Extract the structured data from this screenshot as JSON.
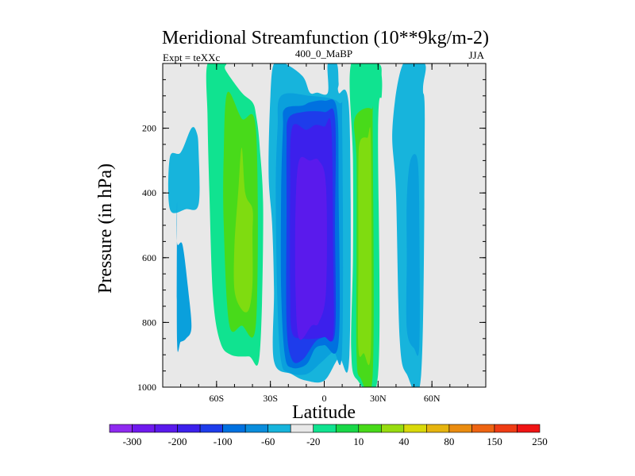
{
  "chart_data": {
    "type": "heatmap",
    "title": "Meridional Streamfunction (10**9kg/m-2)",
    "left_subtitle": "Expt = teXXc",
    "center_subtitle": "400_0_MaBP",
    "right_subtitle": "JJA",
    "xlabel": "Latitude",
    "ylabel": "Pressure (in hPa)",
    "xlim": [
      -90,
      90
    ],
    "ylim": [
      1000,
      0
    ],
    "x_ticks": [
      {
        "value": -60,
        "label": "60S"
      },
      {
        "value": -30,
        "label": "30S"
      },
      {
        "value": 0,
        "label": "0"
      },
      {
        "value": 30,
        "label": "30N"
      },
      {
        "value": 60,
        "label": "60N"
      }
    ],
    "y_ticks": [
      {
        "value": 200,
        "label": "200"
      },
      {
        "value": 400,
        "label": "400"
      },
      {
        "value": 600,
        "label": "600"
      },
      {
        "value": 800,
        "label": "800"
      },
      {
        "value": 1000,
        "label": "1000"
      }
    ],
    "background_color": "#e8e8e8",
    "contour_regions": [
      {
        "name": "sh-polar-cell",
        "level": -20,
        "color": "#17b4dc",
        "outline": [
          [
            -86,
            290
          ],
          [
            -80,
            275
          ],
          [
            -74,
            200
          ],
          [
            -71,
            215
          ],
          [
            -70,
            270
          ],
          [
            -70,
            435
          ],
          [
            -77,
            450
          ],
          [
            -86,
            450
          ]
        ]
      },
      {
        "name": "sh-polar-core",
        "level": -40,
        "color": "#0aa0dc",
        "outline": [
          [
            -82,
            440
          ],
          [
            -82,
            555
          ],
          [
            -79,
            560
          ],
          [
            -76,
            690
          ],
          [
            -74,
            815
          ],
          [
            -77,
            850
          ],
          [
            -80,
            860
          ],
          [
            -82,
            860
          ]
        ]
      },
      {
        "name": "sh-ferrel-cell",
        "level": 10,
        "color": "#10e390",
        "outline": [
          [
            -65,
            0
          ],
          [
            -55,
            0
          ],
          [
            -55,
            20
          ],
          [
            -46,
            90
          ],
          [
            -40,
            120
          ],
          [
            -38,
            160
          ],
          [
            -36,
            255
          ],
          [
            -34,
            470
          ],
          [
            -36,
            900
          ],
          [
            -42,
            905
          ],
          [
            -52,
            900
          ],
          [
            -58,
            860
          ],
          [
            -62,
            720
          ],
          [
            -64,
            400
          ],
          [
            -65,
            170
          ]
        ]
      },
      {
        "name": "sh-ferrel-inner",
        "level": 40,
        "color": "#48da1a",
        "outline": [
          [
            -54,
            90
          ],
          [
            -46,
            170
          ],
          [
            -38,
            210
          ],
          [
            -38,
            800
          ],
          [
            -46,
            810
          ],
          [
            -53,
            805
          ],
          [
            -56,
            500
          ],
          [
            -56,
            280
          ]
        ]
      },
      {
        "name": "sh-ferrel-core",
        "level": 60,
        "color": "#7fdc10",
        "outline": [
          [
            -46,
            260
          ],
          [
            -44,
            400
          ],
          [
            -40,
            450
          ],
          [
            -40,
            530
          ],
          [
            -40,
            680
          ],
          [
            -42,
            760
          ],
          [
            -46,
            760
          ],
          [
            -50,
            700
          ],
          [
            -50,
            560
          ],
          [
            -48,
            400
          ]
        ]
      },
      {
        "name": "hadley-outer",
        "level": -20,
        "color": "#17b4dc",
        "outline": [
          [
            -28,
            0
          ],
          [
            -22,
            0
          ],
          [
            -12,
            40
          ],
          [
            -8,
            90
          ],
          [
            -4,
            90
          ],
          [
            2,
            90
          ],
          [
            2,
            0
          ],
          [
            7,
            0
          ],
          [
            8,
            60
          ],
          [
            8,
            90
          ],
          [
            14,
            160
          ],
          [
            14,
            900
          ],
          [
            8,
            910
          ],
          [
            0,
            980
          ],
          [
            -10,
            980
          ],
          [
            -18,
            960
          ],
          [
            -28,
            920
          ],
          [
            -28,
            700
          ],
          [
            -29,
            500
          ],
          [
            -31,
            340
          ],
          [
            -30,
            100
          ]
        ]
      },
      {
        "name": "hadley-40",
        "level": -40,
        "color": "#0aa0dc",
        "outline": [
          [
            -24,
            100
          ],
          [
            -8,
            100
          ],
          [
            8,
            120
          ],
          [
            10,
            200
          ],
          [
            10,
            880
          ],
          [
            5,
            890
          ],
          [
            -2,
            925
          ],
          [
            -10,
            960
          ],
          [
            -20,
            955
          ],
          [
            -24,
            920
          ],
          [
            -26,
            750
          ],
          [
            -27,
            400
          ],
          [
            -26,
            200
          ]
        ]
      },
      {
        "name": "hadley-60",
        "level": -60,
        "color": "#0071e0",
        "outline": [
          [
            -22,
            140
          ],
          [
            -12,
            130
          ],
          [
            -8,
            120
          ],
          [
            0,
            115
          ],
          [
            7,
            140
          ],
          [
            8,
            400
          ],
          [
            8,
            860
          ],
          [
            0,
            870
          ],
          [
            -5,
            880
          ],
          [
            -10,
            930
          ],
          [
            -18,
            940
          ],
          [
            -22,
            900
          ],
          [
            -24,
            700
          ],
          [
            -24,
            400
          ],
          [
            -23,
            200
          ]
        ]
      },
      {
        "name": "hadley-100",
        "level": -100,
        "color": "#1e3ceb",
        "outline": [
          [
            -20,
            170
          ],
          [
            -12,
            150
          ],
          [
            0,
            150
          ],
          [
            6,
            170
          ],
          [
            6,
            500
          ],
          [
            6,
            830
          ],
          [
            0,
            845
          ],
          [
            -5,
            860
          ],
          [
            -12,
            915
          ],
          [
            -18,
            915
          ],
          [
            -21,
            800
          ],
          [
            -21,
            450
          ],
          [
            -21,
            250
          ]
        ]
      },
      {
        "name": "hadley-150",
        "level": -150,
        "color": "#3c20ec",
        "outline": [
          [
            -18,
            200
          ],
          [
            -10,
            205
          ],
          [
            -5,
            190
          ],
          [
            0,
            195
          ],
          [
            4,
            200
          ],
          [
            5,
            600
          ],
          [
            5,
            840
          ],
          [
            0,
            845
          ],
          [
            -5,
            850
          ],
          [
            -12,
            850
          ],
          [
            -18,
            830
          ],
          [
            -19,
            700
          ],
          [
            -19,
            400
          ]
        ]
      },
      {
        "name": "hadley-200",
        "level": -200,
        "color": "#5a1aec",
        "outline": [
          [
            -14,
            300
          ],
          [
            -8,
            300
          ],
          [
            -3,
            300
          ],
          [
            1,
            380
          ],
          [
            1,
            700
          ],
          [
            -3,
            800
          ],
          [
            -7,
            810
          ],
          [
            -14,
            850
          ],
          [
            -16,
            700
          ],
          [
            -16,
            450
          ]
        ]
      },
      {
        "name": "nh-ferrel-cell",
        "level": 10,
        "color": "#10e390",
        "outline": [
          [
            15,
            0
          ],
          [
            30,
            0
          ],
          [
            32,
            40
          ],
          [
            32,
            100
          ],
          [
            30,
            200
          ],
          [
            30,
            960
          ],
          [
            18,
            975
          ],
          [
            15,
            880
          ],
          [
            16,
            600
          ],
          [
            16,
            300
          ]
        ]
      },
      {
        "name": "nh-ferrel-inner",
        "level": 40,
        "color": "#48da1a",
        "outline": [
          [
            17,
            170
          ],
          [
            26,
            140
          ],
          [
            27,
            220
          ],
          [
            27,
            960
          ],
          [
            20,
            970
          ],
          [
            18,
            900
          ],
          [
            18,
            600
          ],
          [
            18,
            300
          ]
        ]
      },
      {
        "name": "nh-ferrel-core",
        "level": 60,
        "color": "#7fdc10",
        "outline": [
          [
            20,
            240
          ],
          [
            24,
            230
          ],
          [
            26,
            250
          ],
          [
            26,
            880
          ],
          [
            22,
            895
          ],
          [
            19,
            880
          ],
          [
            19,
            600
          ],
          [
            19,
            320
          ]
        ]
      },
      {
        "name": "nh-polar-cell",
        "level": -20,
        "color": "#17b4dc",
        "outline": [
          [
            44,
            0
          ],
          [
            56,
            0
          ],
          [
            55,
            80
          ],
          [
            56,
            200
          ],
          [
            54,
            960
          ],
          [
            46,
            960
          ],
          [
            42,
            850
          ],
          [
            40,
            400
          ],
          [
            38,
            200
          ]
        ]
      },
      {
        "name": "nh-polar-core",
        "level": -40,
        "color": "#0aa0dc",
        "outline": [
          [
            48,
            300
          ],
          [
            52,
            300
          ],
          [
            53,
            500
          ],
          [
            53,
            870
          ],
          [
            50,
            880
          ],
          [
            46,
            820
          ],
          [
            46,
            600
          ],
          [
            46,
            420
          ]
        ]
      }
    ],
    "colorbar": {
      "labels": [
        "-300",
        "-200",
        "-100",
        "-60",
        "-20",
        "10",
        "40",
        "80",
        "150",
        "250"
      ],
      "colors": [
        "#8f2af0",
        "#6f1aee",
        "#5a1aec",
        "#3c20ec",
        "#1e3ceb",
        "#0071e0",
        "#0a8ddc",
        "#17b4dc",
        "#e8e8e8",
        "#10e390",
        "#19d848",
        "#48da1a",
        "#98dc10",
        "#d9d90a",
        "#e6b40f",
        "#ea8c10",
        "#ee6412",
        "#ef3c14",
        "#f01414"
      ]
    }
  }
}
